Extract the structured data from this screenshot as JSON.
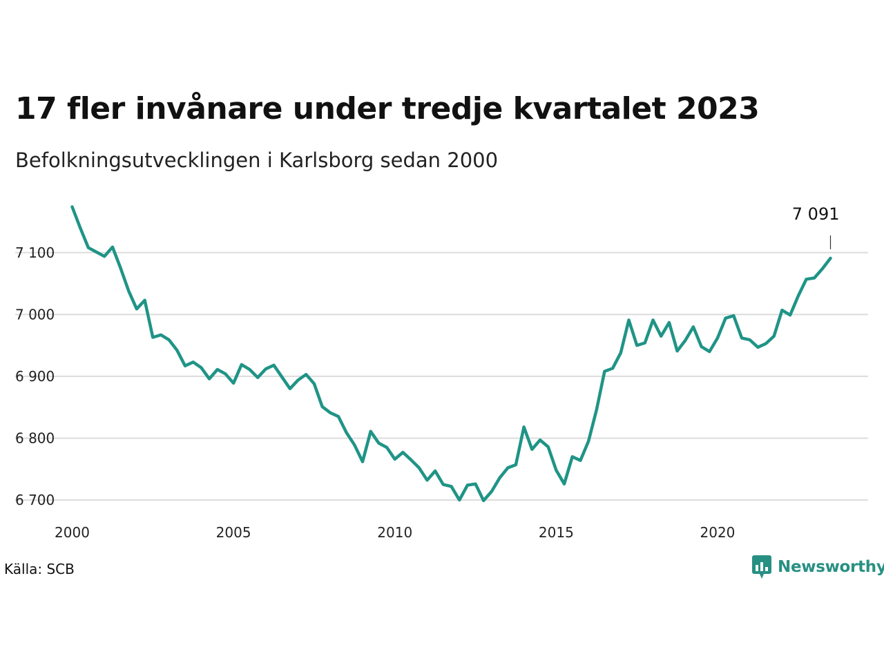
{
  "title": "17 fler invånare under tredje kvartalet 2023",
  "subtitle": "Befolkningsutvecklingen i Karlsborg sedan 2000",
  "source": "Källa: SCB",
  "brand": {
    "name": "Newsworthy",
    "icon": "newsworthy-logo-icon",
    "color": "#279083"
  },
  "chart_data": {
    "type": "line",
    "title": "17 fler invånare under tredje kvartalet 2023",
    "subtitle": "Befolkningsutvecklingen i Karlsborg sedan 2000",
    "xlabel": "",
    "ylabel": "",
    "x_ticks": [
      2000,
      2005,
      2010,
      2015,
      2020
    ],
    "x_tick_labels": [
      "2000",
      "2005",
      "2010",
      "2015",
      "2020"
    ],
    "y_ticks": [
      6700,
      6800,
      6900,
      7000,
      7100
    ],
    "y_tick_labels": [
      "6 700",
      "6 800",
      "6 900",
      "7 000",
      "7 100"
    ],
    "xlim": [
      2000,
      2024.5
    ],
    "ylim": [
      6690,
      7180
    ],
    "grid": "horizontal",
    "line_color": "#1f9486",
    "last_value_label": "7 091",
    "series": [
      {
        "x": [
          2000.0,
          2000.25,
          2000.5,
          2000.75,
          2001.0,
          2001.25,
          2001.5,
          2001.75,
          2002.0,
          2002.25,
          2002.5,
          2002.75,
          2003.0,
          2003.25,
          2003.5,
          2003.75,
          2004.0,
          2004.25,
          2004.5,
          2004.75,
          2005.0,
          2005.25,
          2005.5,
          2005.75,
          2006.0,
          2006.25,
          2006.5,
          2006.75,
          2007.0,
          2007.25,
          2007.5,
          2007.75,
          2008.0,
          2008.25,
          2008.5,
          2008.75,
          2009.0,
          2009.25,
          2009.5,
          2009.75,
          2010.0,
          2010.25,
          2010.5,
          2010.75,
          2011.0,
          2011.25,
          2011.5,
          2011.75,
          2012.0,
          2012.25,
          2012.5,
          2012.75,
          2013.0,
          2013.25,
          2013.5,
          2013.75,
          2014.0,
          2014.25,
          2014.5,
          2014.75,
          2015.0,
          2015.25,
          2015.5,
          2015.75,
          2016.0,
          2016.25,
          2016.5,
          2016.75,
          2017.0,
          2017.25,
          2017.5,
          2017.75,
          2018.0,
          2018.25,
          2018.5,
          2018.75,
          2019.0,
          2019.25,
          2019.5,
          2019.75,
          2020.0,
          2020.25,
          2020.5,
          2020.75,
          2021.0,
          2021.25,
          2021.5,
          2021.75,
          2022.0,
          2022.25,
          2022.5,
          2022.75,
          2023.0,
          2023.25,
          2023.5
        ],
        "values": [
          7174,
          7140,
          7108,
          7101,
          7094,
          7109,
          7075,
          7038,
          7009,
          7023,
          6963,
          6967,
          6959,
          6942,
          6917,
          6923,
          6914,
          6896,
          6911,
          6904,
          6889,
          6919,
          6911,
          6898,
          6912,
          6918,
          6899,
          6880,
          6894,
          6903,
          6888,
          6851,
          6841,
          6835,
          6809,
          6789,
          6762,
          6811,
          6792,
          6785,
          6766,
          6777,
          6765,
          6752,
          6732,
          6747,
          6725,
          6722,
          6700,
          6724,
          6726,
          6699,
          6714,
          6736,
          6752,
          6757,
          6818,
          6782,
          6797,
          6786,
          6748,
          6726,
          6770,
          6764,
          6795,
          6846,
          6908,
          6913,
          6938,
          6991,
          6950,
          6954,
          6991,
          6965,
          6987,
          6941,
          6958,
          6980,
          6948,
          6940,
          6962,
          6994,
          6998,
          6962,
          6959,
          6947,
          6953,
          6965,
          7007,
          6999,
          7030,
          7057,
          7059,
          7074,
          7091
        ]
      }
    ]
  }
}
